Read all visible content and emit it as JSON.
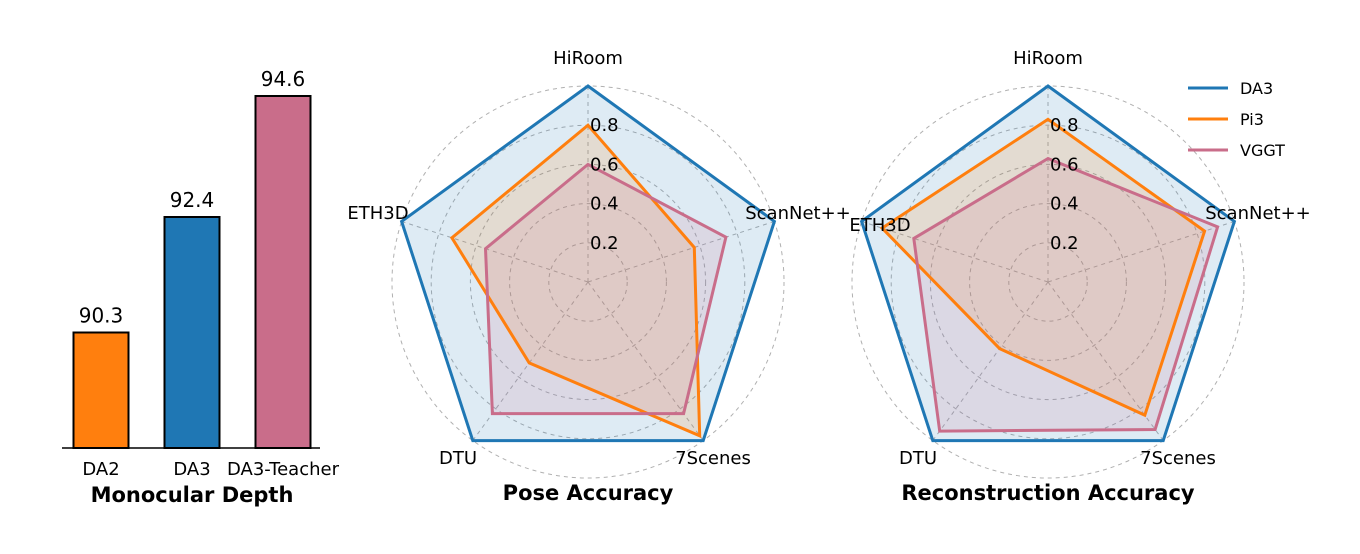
{
  "chart_data": [
    {
      "type": "bar",
      "title": "Monocular Depth",
      "categories": [
        "DA2",
        "DA3",
        "DA3-Teacher"
      ],
      "values": [
        90.3,
        92.4,
        94.6
      ],
      "value_labels": [
        "90.3",
        "92.4",
        "94.6"
      ],
      "colors": [
        "#ff7f0e",
        "#1f77b4",
        "#c96d8a"
      ],
      "ylim": [
        88.2,
        94.6
      ],
      "xlabel": "",
      "ylabel": ""
    },
    {
      "type": "radar",
      "title": "Pose Accuracy",
      "axes": [
        "HiRoom",
        "ScanNet++",
        "7Scenes",
        "DTU",
        "ETH3D"
      ],
      "rlim": [
        0,
        1.0
      ],
      "rticks": [
        0.2,
        0.4,
        0.6,
        0.8
      ],
      "rtick_labels": [
        "0.2",
        "0.4",
        "0.6",
        "0.8"
      ],
      "series": [
        {
          "name": "DA3",
          "values": [
            1.0,
            1.0,
            1.0,
            1.0,
            1.0
          ]
        },
        {
          "name": "Pi3",
          "values": [
            0.8,
            0.57,
            0.97,
            0.51,
            0.73
          ]
        },
        {
          "name": "VGGT",
          "values": [
            0.6,
            0.74,
            0.83,
            0.83,
            0.55
          ]
        }
      ]
    },
    {
      "type": "radar",
      "title": "Reconstruction Accuracy",
      "axes": [
        "HiRoom",
        "ScanNet++",
        "7Scenes",
        "DTU",
        "ETH3D"
      ],
      "rlim": [
        0,
        1.0
      ],
      "rticks": [
        0.2,
        0.4,
        0.6,
        0.8
      ],
      "rtick_labels": [
        "0.2",
        "0.4",
        "0.6",
        "0.8"
      ],
      "series": [
        {
          "name": "DA3",
          "values": [
            1.0,
            1.0,
            1.0,
            1.0,
            1.0
          ]
        },
        {
          "name": "Pi3",
          "values": [
            0.83,
            0.84,
            0.84,
            0.42,
            0.89
          ]
        },
        {
          "name": "VGGT",
          "values": [
            0.63,
            0.91,
            0.93,
            0.94,
            0.72
          ]
        }
      ]
    }
  ],
  "legend": {
    "placement": "top-right",
    "entries": [
      {
        "name": "DA3",
        "color": "#1f77b4"
      },
      {
        "name": "Pi3",
        "color": "#ff7f0e"
      },
      {
        "name": "VGGT",
        "color": "#c96d8a"
      }
    ]
  },
  "colors": {
    "DA3": "#1f77b4",
    "Pi3": "#ff7f0e",
    "VGGT": "#c96d8a"
  }
}
